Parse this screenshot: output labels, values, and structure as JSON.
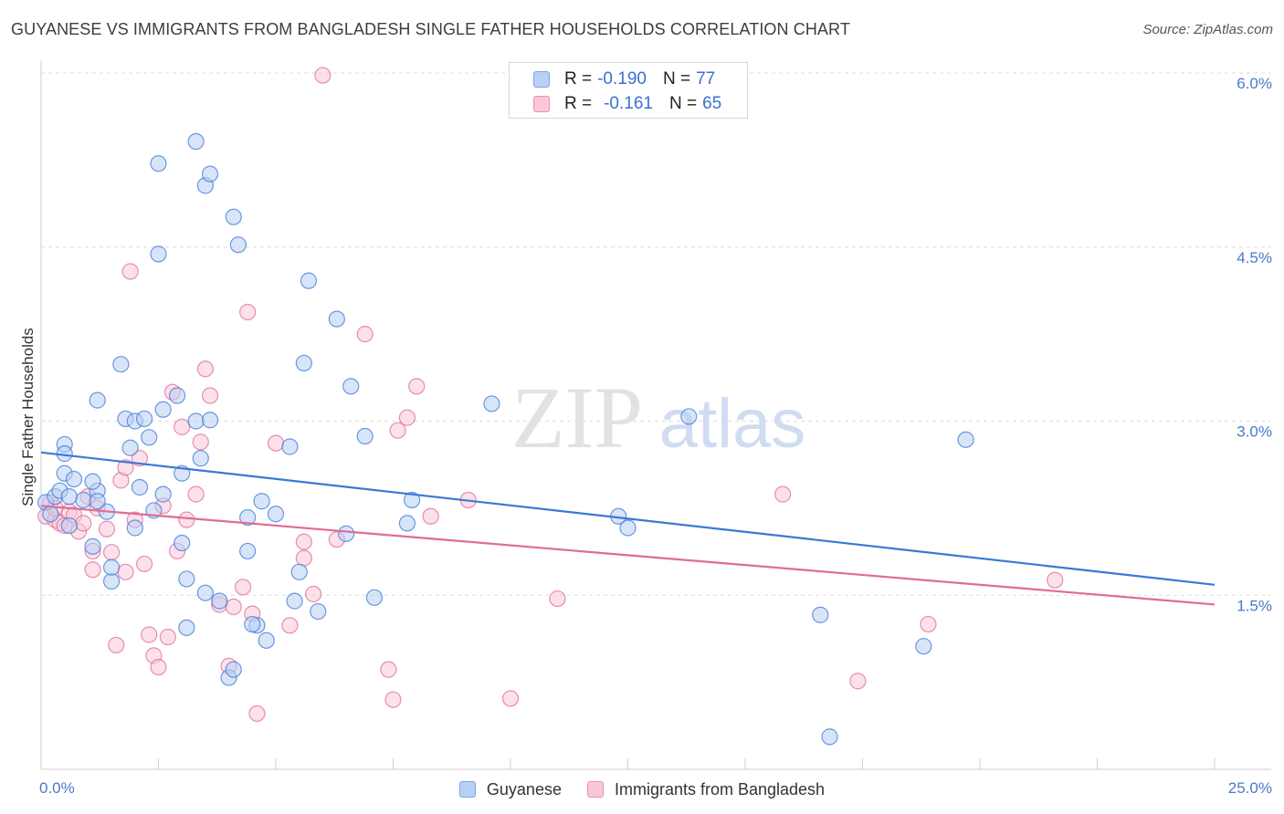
{
  "header": {
    "title": "GUYANESE VS IMMIGRANTS FROM BANGLADESH SINGLE FATHER HOUSEHOLDS CORRELATION CHART",
    "source": "Source: ZipAtlas.com"
  },
  "watermark": {
    "zip": "ZIP",
    "atlas": "atlas"
  },
  "legend_top": [
    {
      "r_label": "R =",
      "r_value": "-0.190",
      "n_label": "N =",
      "n_value": "77",
      "color": "#7aa7e6",
      "fill": "#b8d0f3"
    },
    {
      "r_label": "R =",
      "r_value": "-0.161",
      "n_label": "N =",
      "n_value": "65",
      "color": "#ee8fb0",
      "fill": "#f9c7d8"
    }
  ],
  "legend_bottom": [
    {
      "label": "Guyanese",
      "color": "#7aa7e6",
      "fill": "#b8d0f3"
    },
    {
      "label": "Immigrants from Bangladesh",
      "color": "#ee8fb0",
      "fill": "#f9c7d8"
    }
  ],
  "chart_data": {
    "type": "scatter",
    "title": "GUYANESE VS IMMIGRANTS FROM BANGLADESH SINGLE FATHER HOUSEHOLDS CORRELATION CHART",
    "xlabel": "",
    "ylabel": "Single Father Households",
    "xlim": [
      0,
      25
    ],
    "ylim": [
      0,
      6.0
    ],
    "x_tick_labels": [
      "0.0%",
      "25.0%"
    ],
    "y_ticks": [
      1.5,
      3.0,
      4.5,
      6.0
    ],
    "y_tick_labels": [
      "1.5%",
      "3.0%",
      "4.5%",
      "6.0%"
    ],
    "grid": "horizontal dashed",
    "legend_placement": "top-center",
    "series": [
      {
        "name": "Guyanese",
        "color": "#3b78d8",
        "fill": "#b8d0f3",
        "trend": {
          "x": [
            0,
            25
          ],
          "y": [
            2.73,
            1.59
          ]
        },
        "points": [
          [
            0.1,
            2.3
          ],
          [
            0.2,
            2.2
          ],
          [
            0.3,
            2.35
          ],
          [
            0.4,
            2.4
          ],
          [
            0.5,
            2.55
          ],
          [
            0.6,
            2.1
          ],
          [
            0.5,
            2.8
          ],
          [
            0.5,
            2.72
          ],
          [
            0.7,
            2.5
          ],
          [
            0.9,
            2.32
          ],
          [
            1.2,
            2.4
          ],
          [
            1.1,
            2.48
          ],
          [
            1.4,
            2.22
          ],
          [
            1.2,
            2.31
          ],
          [
            1.2,
            3.18
          ],
          [
            1.7,
            3.49
          ],
          [
            1.8,
            3.02
          ],
          [
            2.0,
            3.0
          ],
          [
            2.2,
            3.02
          ],
          [
            1.9,
            2.77
          ],
          [
            2.1,
            2.43
          ],
          [
            2.3,
            2.86
          ],
          [
            2.4,
            2.23
          ],
          [
            2.0,
            2.08
          ],
          [
            2.6,
            3.1
          ],
          [
            2.9,
            3.22
          ],
          [
            3.0,
            2.55
          ],
          [
            2.6,
            2.37
          ],
          [
            3.4,
            2.68
          ],
          [
            3.3,
            3.0
          ],
          [
            3.6,
            3.01
          ],
          [
            3.0,
            1.95
          ],
          [
            3.1,
            1.64
          ],
          [
            3.5,
            1.52
          ],
          [
            3.8,
            1.45
          ],
          [
            4.4,
            1.88
          ],
          [
            4.4,
            2.17
          ],
          [
            4.7,
            2.31
          ],
          [
            5.0,
            2.2
          ],
          [
            4.6,
            1.24
          ],
          [
            4.8,
            1.11
          ],
          [
            5.5,
            1.7
          ],
          [
            5.4,
            1.45
          ],
          [
            5.9,
            1.36
          ],
          [
            6.5,
            2.03
          ],
          [
            7.1,
            1.48
          ],
          [
            6.9,
            2.87
          ],
          [
            7.9,
            2.32
          ],
          [
            7.8,
            2.12
          ],
          [
            2.5,
            5.22
          ],
          [
            2.5,
            4.44
          ],
          [
            3.3,
            5.41
          ],
          [
            3.5,
            5.03
          ],
          [
            3.6,
            5.13
          ],
          [
            4.1,
            4.76
          ],
          [
            4.2,
            4.52
          ],
          [
            5.7,
            4.21
          ],
          [
            6.3,
            3.88
          ],
          [
            6.6,
            3.3
          ],
          [
            5.6,
            3.5
          ],
          [
            5.3,
            2.78
          ],
          [
            9.6,
            3.15
          ],
          [
            13.8,
            3.04
          ],
          [
            12.3,
            2.18
          ],
          [
            12.5,
            2.08
          ],
          [
            19.7,
            2.84
          ],
          [
            16.6,
            1.33
          ],
          [
            18.8,
            1.06
          ],
          [
            16.8,
            0.28
          ],
          [
            4.0,
            0.79
          ],
          [
            4.1,
            0.86
          ],
          [
            1.5,
            1.62
          ],
          [
            1.5,
            1.74
          ],
          [
            1.1,
            1.92
          ],
          [
            0.6,
            2.35
          ],
          [
            4.5,
            1.25
          ],
          [
            3.1,
            1.22
          ]
        ]
      },
      {
        "name": "Immigrants from Bangladesh",
        "color": "#e06b97",
        "fill": "#f9c7d8",
        "trend": {
          "x": [
            0,
            25
          ],
          "y": [
            2.27,
            1.42
          ]
        },
        "points": [
          [
            0.1,
            2.18
          ],
          [
            0.2,
            2.3
          ],
          [
            0.3,
            2.15
          ],
          [
            0.4,
            2.12
          ],
          [
            0.5,
            2.1
          ],
          [
            0.6,
            2.22
          ],
          [
            0.7,
            2.19
          ],
          [
            0.8,
            2.05
          ],
          [
            0.9,
            2.12
          ],
          [
            1.0,
            2.35
          ],
          [
            1.1,
            1.88
          ],
          [
            1.1,
            1.72
          ],
          [
            1.2,
            2.25
          ],
          [
            1.4,
            2.07
          ],
          [
            1.5,
            1.87
          ],
          [
            1.6,
            1.07
          ],
          [
            1.7,
            2.49
          ],
          [
            1.8,
            1.7
          ],
          [
            1.8,
            2.6
          ],
          [
            2.0,
            2.15
          ],
          [
            2.1,
            2.68
          ],
          [
            2.2,
            1.77
          ],
          [
            2.3,
            1.16
          ],
          [
            2.4,
            0.98
          ],
          [
            2.5,
            0.88
          ],
          [
            2.6,
            2.27
          ],
          [
            2.7,
            1.14
          ],
          [
            2.8,
            3.25
          ],
          [
            2.9,
            1.88
          ],
          [
            3.0,
            2.95
          ],
          [
            3.1,
            2.15
          ],
          [
            3.3,
            2.37
          ],
          [
            3.4,
            2.82
          ],
          [
            3.5,
            3.45
          ],
          [
            3.6,
            3.22
          ],
          [
            3.8,
            1.42
          ],
          [
            4.0,
            0.89
          ],
          [
            4.1,
            1.4
          ],
          [
            4.3,
            1.57
          ],
          [
            4.5,
            1.34
          ],
          [
            4.6,
            0.48
          ],
          [
            5.0,
            2.81
          ],
          [
            5.3,
            1.24
          ],
          [
            5.6,
            1.96
          ],
          [
            5.6,
            1.82
          ],
          [
            5.8,
            1.51
          ],
          [
            6.3,
            1.98
          ],
          [
            6.9,
            3.75
          ],
          [
            7.4,
            0.86
          ],
          [
            7.5,
            0.6
          ],
          [
            7.6,
            2.92
          ],
          [
            7.8,
            3.03
          ],
          [
            8.0,
            3.3
          ],
          [
            8.3,
            2.18
          ],
          [
            9.1,
            2.32
          ],
          [
            10.0,
            0.61
          ],
          [
            11.0,
            1.47
          ],
          [
            15.8,
            2.37
          ],
          [
            17.4,
            0.76
          ],
          [
            18.9,
            1.25
          ],
          [
            21.6,
            1.63
          ],
          [
            1.9,
            4.29
          ],
          [
            4.4,
            3.94
          ],
          [
            6.0,
            5.98
          ],
          [
            0.3,
            2.25
          ]
        ]
      }
    ]
  }
}
